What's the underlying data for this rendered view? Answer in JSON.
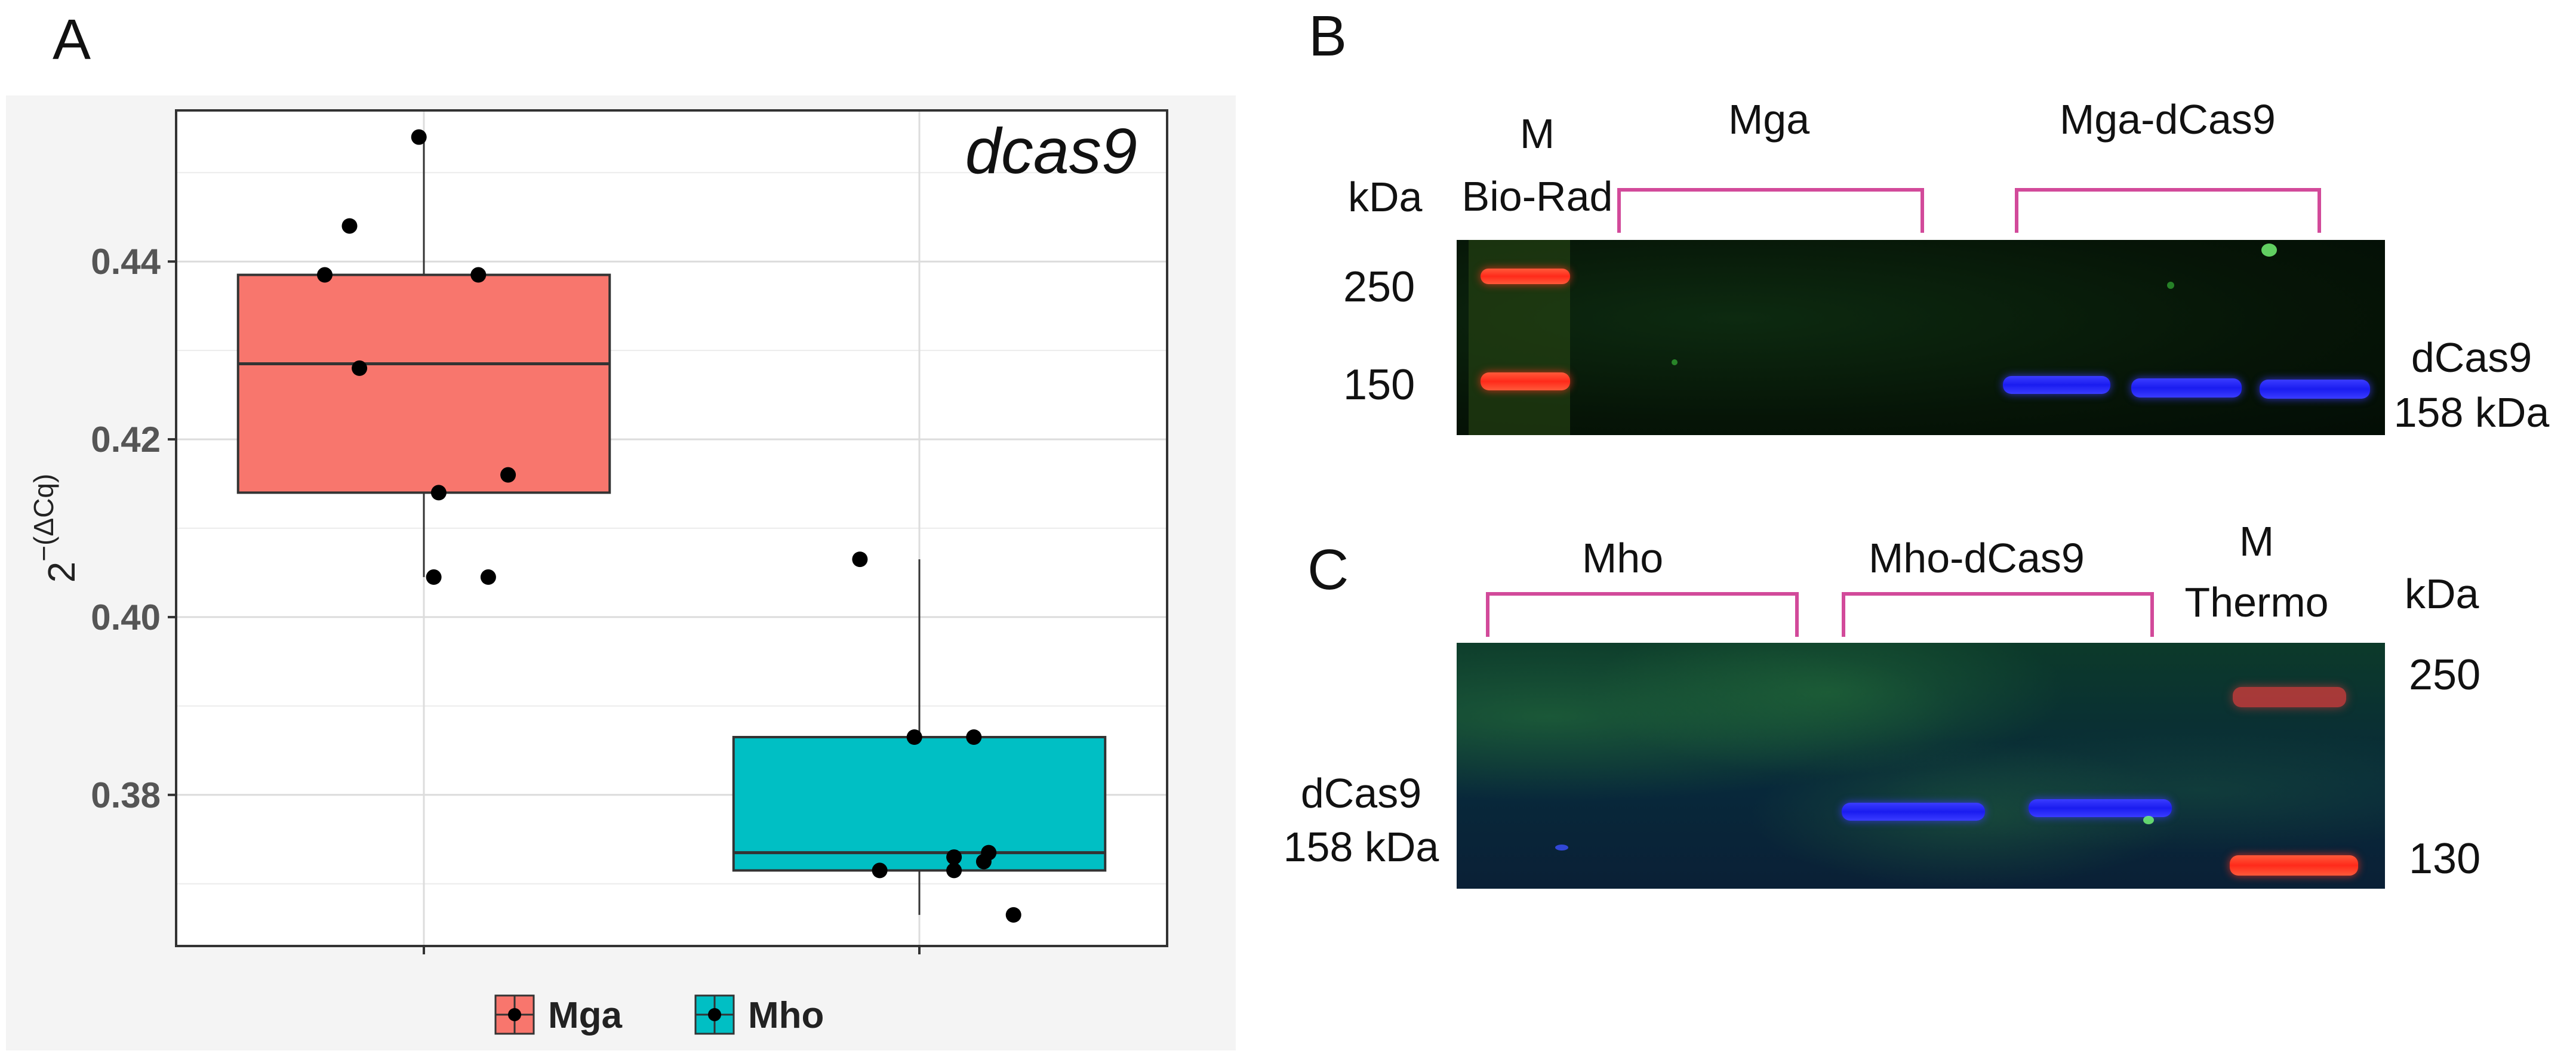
{
  "panels": {
    "a": "A",
    "b": "B",
    "c": "C"
  },
  "chart_data": {
    "type": "box",
    "title": "dcas9",
    "xlabel": "",
    "ylabel_base": "2",
    "ylabel_exponent": "−(ΔCq)",
    "ylim": [
      0.363,
      0.457
    ],
    "yticks": [
      0.38,
      0.4,
      0.42,
      0.44
    ],
    "ytick_labels": [
      "0.38",
      "0.40",
      "0.42",
      "0.44"
    ],
    "grid": true,
    "legend_position": "bottom",
    "categories": [
      "Mga",
      "Mho"
    ],
    "series": [
      {
        "name": "Mga",
        "color": "#F8766D",
        "box": {
          "lower_whisker": 0.4045,
          "q1": 0.414,
          "median": 0.4285,
          "q3": 0.4385,
          "upper_whisker": 0.454
        },
        "points": [
          {
            "x": -0.15,
            "y": 0.444
          },
          {
            "x": -0.2,
            "y": 0.4385
          },
          {
            "x": 0.11,
            "y": 0.4385
          },
          {
            "x": -0.13,
            "y": 0.428
          },
          {
            "x": 0.03,
            "y": 0.414
          },
          {
            "x": 0.17,
            "y": 0.416
          },
          {
            "x": 0.02,
            "y": 0.4045
          },
          {
            "x": 0.13,
            "y": 0.4045
          },
          {
            "x": -0.01,
            "y": 0.454
          }
        ]
      },
      {
        "name": "Mho",
        "color": "#00BFC4",
        "box": {
          "lower_whisker": 0.3665,
          "q1": 0.3715,
          "median": 0.3735,
          "q3": 0.3865,
          "upper_whisker": 0.4065
        },
        "points": [
          {
            "x": -0.12,
            "y": 0.4065
          },
          {
            "x": -0.01,
            "y": 0.3865
          },
          {
            "x": 0.11,
            "y": 0.3865
          },
          {
            "x": -0.08,
            "y": 0.3715
          },
          {
            "x": 0.07,
            "y": 0.3715
          },
          {
            "x": 0.13,
            "y": 0.3725
          },
          {
            "x": 0.07,
            "y": 0.373
          },
          {
            "x": 0.14,
            "y": 0.3735
          },
          {
            "x": 0.19,
            "y": 0.3665
          }
        ]
      }
    ]
  },
  "blot_b": {
    "label_m": "M",
    "label_marker": "Bio-Rad",
    "label_kda": "kDa",
    "group_1": "Mga",
    "group_2": "Mga-dCas9",
    "marker_250": "250",
    "marker_150": "150",
    "band_name": "dCas9",
    "band_size": "158 kDa"
  },
  "blot_c": {
    "group_1": "Mho",
    "group_2": "Mho-dCas9",
    "label_m": "M",
    "label_marker": "Thermo",
    "label_kda": "kDa",
    "marker_250": "250",
    "marker_130": "130",
    "band_name": "dCas9",
    "band_size": "158 kDa"
  },
  "colors": {
    "bracket": "#D24A9A",
    "mga": "#F8766D",
    "mho": "#00BFC4"
  }
}
